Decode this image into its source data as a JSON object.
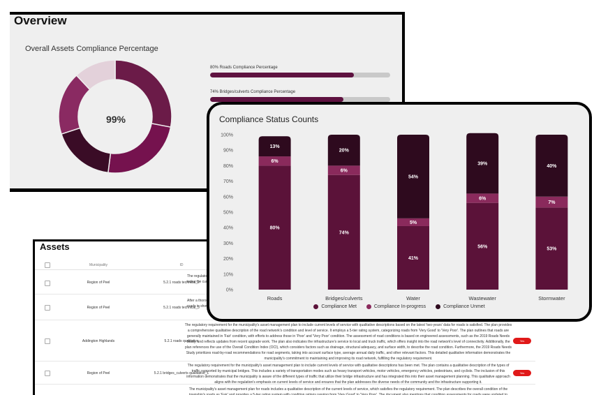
{
  "overview": {
    "title": "Overview",
    "subtitle": "Overall Assets Compliance Percentage",
    "donut_center": "99%",
    "donut_segments": [
      {
        "value": 28,
        "color": "#6b1b48"
      },
      {
        "value": 24,
        "color": "#75124e"
      },
      {
        "value": 18,
        "color": "#3a0c26"
      },
      {
        "value": 18,
        "color": "#8a2a62"
      },
      {
        "value": 12,
        "color": "#e3d1da"
      }
    ],
    "progress": [
      {
        "label": "80% Roads Compliance Percentage",
        "value": 80
      },
      {
        "label": "74% Bridges/culverts Compliance Percentage",
        "value": 74
      }
    ]
  },
  "status": {
    "title": "Compliance Status Counts",
    "legend": [
      {
        "label": "Compliance Met",
        "color": "#5b1239"
      },
      {
        "label": "Compliance In-progress",
        "color": "#8a2a5c"
      },
      {
        "label": "Compliance Unmet",
        "color": "#2e0a1e"
      }
    ]
  },
  "chart_data": {
    "type": "bar",
    "stacked": true,
    "title": "Compliance Status Counts",
    "categories": [
      "Roads",
      "Bridges/culverts",
      "Water",
      "Wastewater",
      "Stormwater"
    ],
    "ylim": [
      0,
      100
    ],
    "yticks": [
      "0%",
      "10%",
      "20%",
      "30%",
      "40%",
      "50%",
      "60%",
      "70%",
      "80%",
      "90%",
      "100%"
    ],
    "series": [
      {
        "name": "Compliance Met",
        "values": [
          80,
          74,
          41,
          56,
          53
        ],
        "labels": [
          "80%",
          "74%",
          "41%",
          "56%",
          "53%"
        ],
        "color": "#5b1239"
      },
      {
        "name": "Compliance In-progress",
        "values": [
          6,
          6,
          5,
          6,
          7
        ],
        "labels": [
          "6%",
          "6%",
          "5%",
          "6%",
          "7%"
        ],
        "color": "#8a2a5c"
      },
      {
        "name": "Compliance Unmet",
        "values": [
          13,
          20,
          54,
          39,
          40
        ],
        "labels": [
          "13%",
          "20%",
          "54%",
          "39%",
          "40%"
        ],
        "color": "#2e0a1e"
      }
    ],
    "legend_position": "bottom",
    "grid": false
  },
  "assets": {
    "title": "Assets",
    "headers": {
      "municipality": "Municipality",
      "id": "ID"
    },
    "rows": [
      {
        "municipality": "Region of Peel",
        "id": "5.2.1 roads technical_2",
        "desc": "The regulatory condition index the current leve",
        "status": ""
      },
      {
        "municipality": "Region of Peel",
        "id": "5.2.1 roads technical_3",
        "desc": "After a thorough unpaved roads in show value for c",
        "status": ""
      },
      {
        "municipality": "Addington Highlands",
        "id": "5.2.1 roads qualitative",
        "desc": "The regulatory requirement for the municipality's asset management plan to include current levels of service with qualitative descriptions based on the latest 'two-years' data for roads is satisfied. The plan provides a comprehensive qualitative description of the road network's condition and level of service. It employs a 5-tier rating system, categorizing roads from 'Very Good' to 'Very Poor'. The plan outlines that roads are generally maintained in 'Fair' condition, with efforts to address those in 'Poor' and 'Very Poor' condition. The assessment of road conditions is based on engineered assessments, such as the 2019 Roads Needs Study, and reflects updates from recent upgrade work. The plan also indicates the infrastructure's service to local and truck traffic, which offers insight into the road network's level of connectivity. Additionally, the plan references the use of the Overall Condition Index (OCI), which considers factors such as drainage, structural adequacy, and surface width, to describe the road condition. Furthermore, the 2019 Roads Needs Study prioritizes road-by-road recommendations for road segments, taking into account surface type, average annual daily traffic, and other relevant factors. This detailed qualitative information demonstrates the municipality's commitment to maintaining and improving its road network, fulfilling the regulatory requirement.",
        "status": "Yes"
      },
      {
        "municipality": "Region of Peel",
        "id": "5.2.1 bridges_culverts qualitative_1",
        "desc": "The regulatory requirement for the municipality's asset management plan to include current levels of service with qualitative descriptions has been met. The plan contains a qualitative description of the types of traffic supported by municipal bridges. This includes a variety of transportation modes such as heavy transport vehicles, motor vehicles, emergency vehicles, pedestrians, and cyclists. The inclusion of this information demonstrates that the municipality is aware of the different types of traffic that utilize their bridge infrastructure and has integrated this into their asset management planning. This qualitative approach aligns with the regulation's emphasis on current levels of service and ensures that the plan addresses the diverse needs of the community and the infrastructure supporting it.",
        "status": "Yes"
      },
      {
        "municipality": "",
        "id": "",
        "desc": "The municipality's asset management plan for roads includes a qualitative description of the current levels of service, which satisfies the regulatory requirement. The plan describes the overall condition of the township's roads as 'Fair' and provides a 5-tier rating system with condition ratings ranging from 'Very Good' to 'Very Poor'. The document also mentions that condition assessments for roads were updated to reflect recent upgrade",
        "status": ""
      }
    ]
  }
}
